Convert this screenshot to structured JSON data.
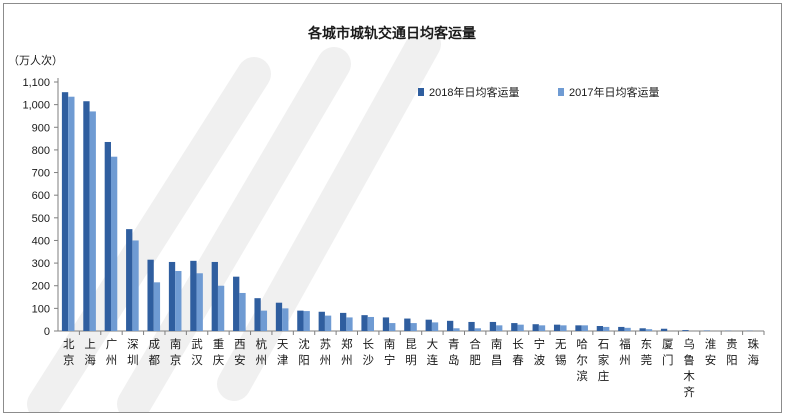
{
  "chart_data": {
    "type": "bar",
    "title": "各城市城轨交通日均客运量",
    "ylabel": "（万人次）",
    "ylim": [
      0,
      1100
    ],
    "yticks": [
      "0",
      "100",
      "200",
      "300",
      "400",
      "500",
      "600",
      "700",
      "800",
      "900",
      "1,000",
      "1,100"
    ],
    "categories": [
      "北京",
      "上海",
      "广州",
      "深圳",
      "成都",
      "南京",
      "武汉",
      "重庆",
      "西安",
      "杭州",
      "天津",
      "沈阳",
      "苏州",
      "郑州",
      "长沙",
      "南宁",
      "昆明",
      "大连",
      "青岛",
      "合肥",
      "南昌",
      "长春",
      "宁波",
      "无锡",
      "哈尔滨",
      "石家庄",
      "福州",
      "东莞",
      "厦门",
      "乌鲁木齐",
      "淮安",
      "贵阳",
      "珠海"
    ],
    "series": [
      {
        "name": "2018年日均客运量",
        "color": "#2f5e9f",
        "values": [
          1055,
          1015,
          835,
          450,
          315,
          305,
          310,
          305,
          240,
          145,
          125,
          90,
          85,
          80,
          70,
          60,
          55,
          50,
          45,
          40,
          40,
          35,
          30,
          28,
          25,
          22,
          18,
          12,
          10,
          4,
          2,
          1,
          1
        ]
      },
      {
        "name": "2017年日均客运量",
        "color": "#6f9bd3",
        "values": [
          1035,
          970,
          770,
          400,
          215,
          265,
          255,
          200,
          168,
          90,
          100,
          88,
          68,
          60,
          62,
          35,
          35,
          38,
          12,
          12,
          25,
          28,
          25,
          25,
          25,
          18,
          14,
          8,
          0,
          0,
          0,
          0,
          0
        ]
      }
    ],
    "legend_position": "top-right",
    "grid": false
  }
}
